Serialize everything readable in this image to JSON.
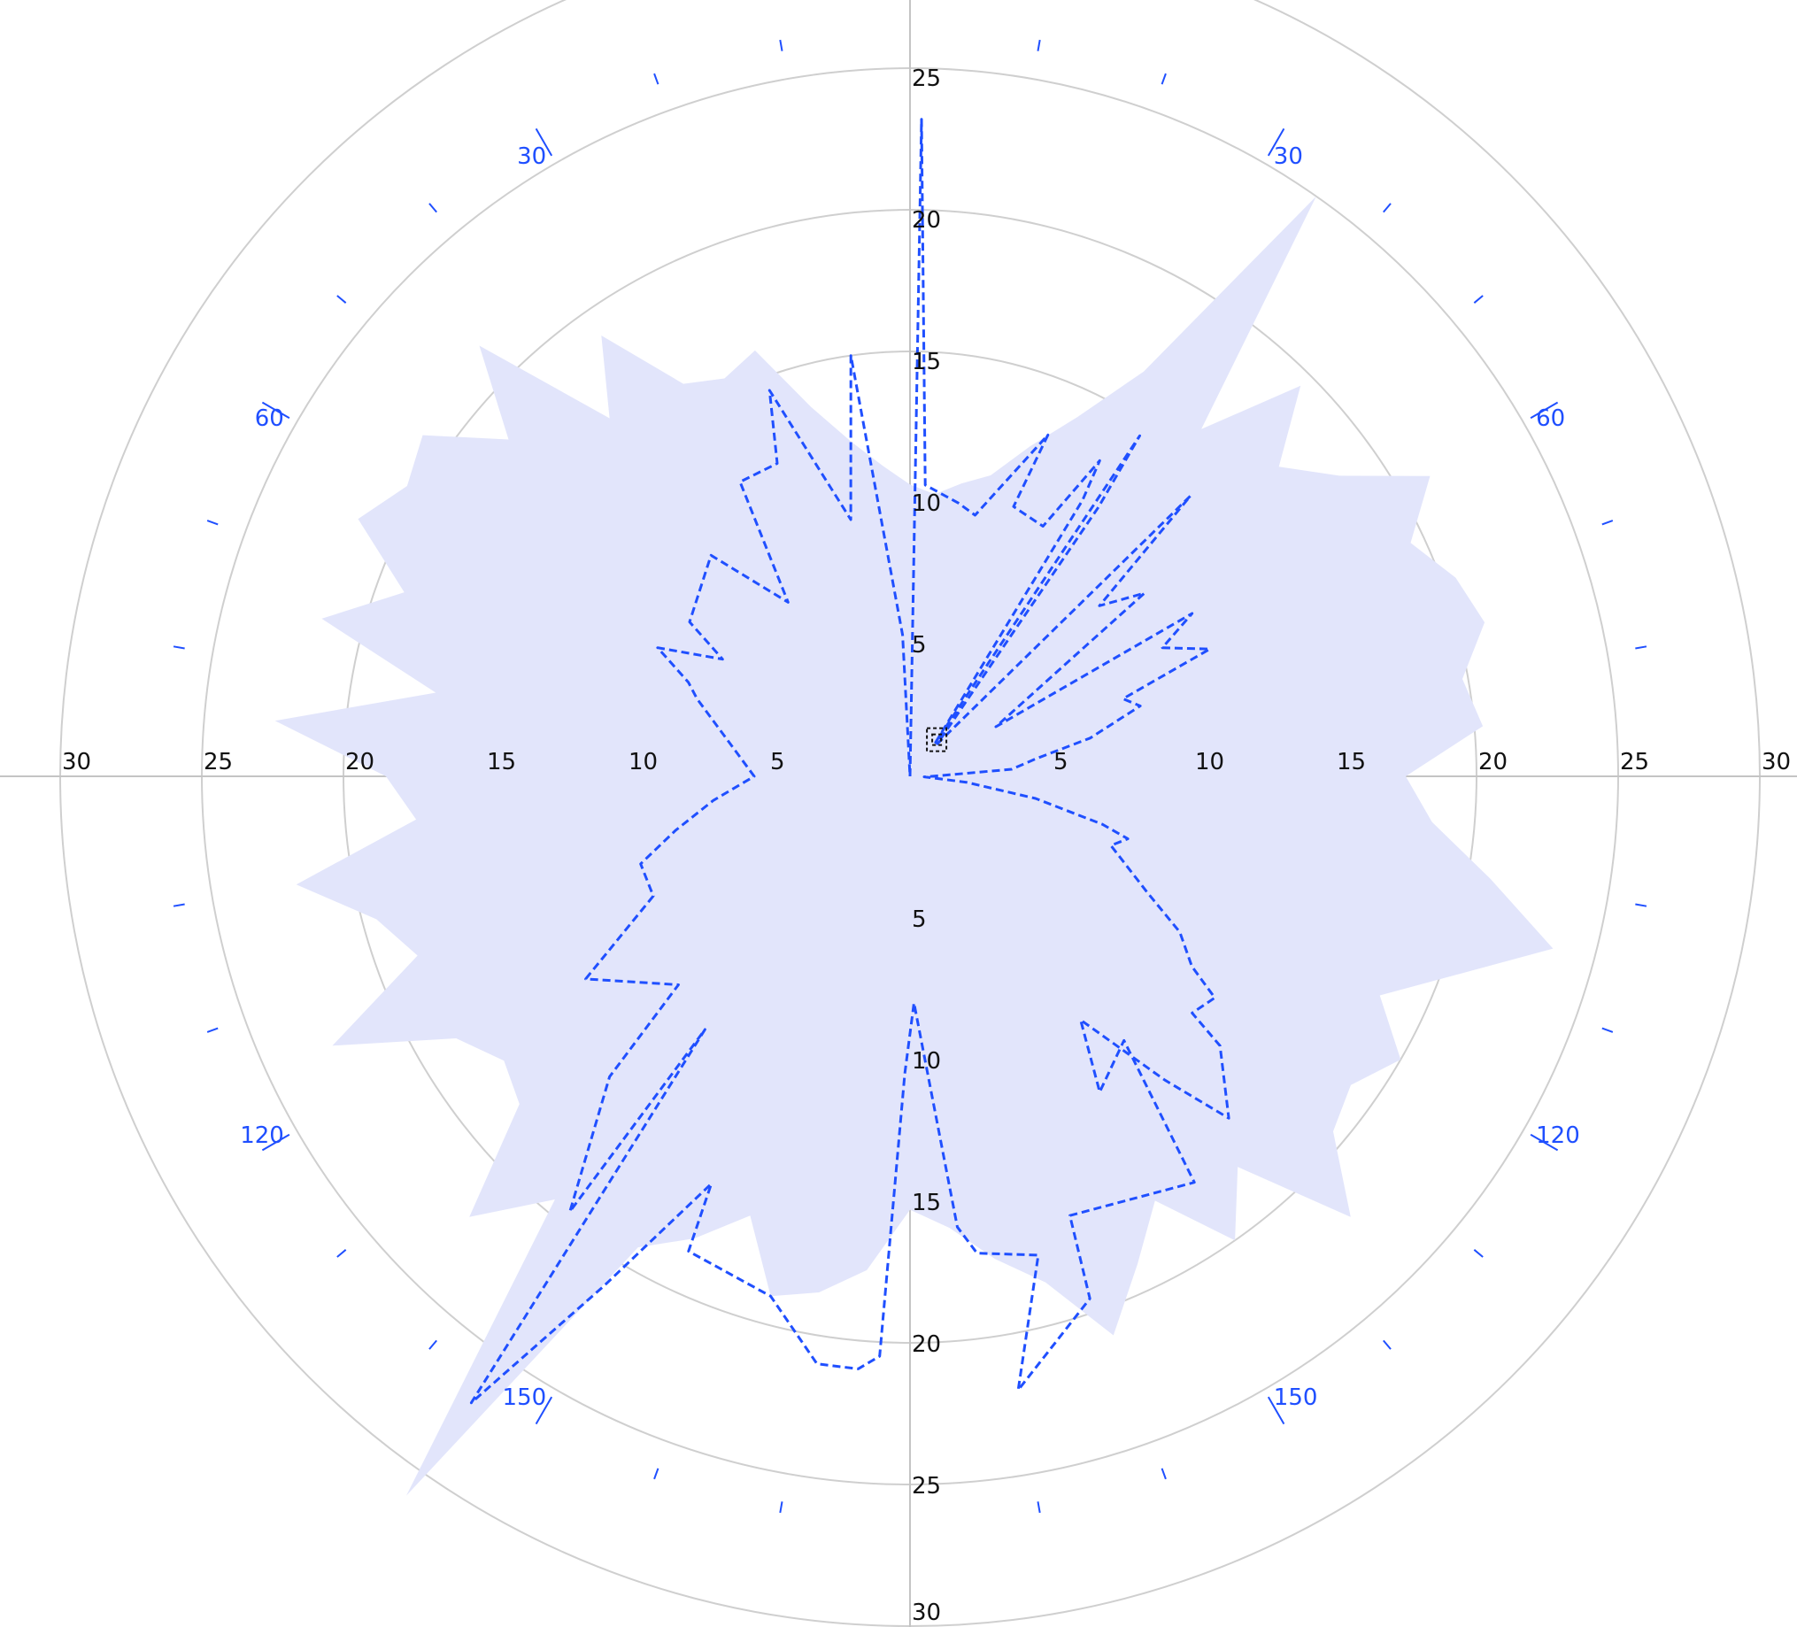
{
  "chart_data": {
    "type": "polar",
    "angle_unit": "degrees",
    "angle_zero": "top",
    "angle_direction": "clockwise",
    "radial_range": [
      0,
      30
    ],
    "radial_ticks": [
      5,
      10,
      15,
      20,
      25,
      30
    ],
    "radial_tick_labels": [
      "5",
      "10",
      "15",
      "20",
      "25",
      "30"
    ],
    "angle_labels": [
      "30",
      "60",
      "120",
      "150"
    ],
    "grid": true,
    "colors": {
      "line": "#1f4fff",
      "area": "#e2e5fb",
      "grid": "#cfcfcf"
    },
    "series": [
      {
        "kind": "area",
        "points": [
          [
            0,
            10.3
          ],
          [
            5,
            10.0
          ],
          [
            10,
            10.5
          ],
          [
            15,
            11.0
          ],
          [
            20,
            12.4
          ],
          [
            25,
            14.0
          ],
          [
            30,
            16.5
          ],
          [
            35,
            25.0
          ],
          [
            40,
            16.0
          ],
          [
            45,
            19.5
          ],
          [
            50,
            17.0
          ],
          [
            55,
            18.5
          ],
          [
            60,
            21.2
          ],
          [
            65,
            19.5
          ],
          [
            70,
            20.5
          ],
          [
            75,
            21.0
          ],
          [
            80,
            19.8
          ],
          [
            85,
            20.3
          ],
          [
            90,
            17.5
          ],
          [
            95,
            18.5
          ],
          [
            100,
            20.8
          ],
          [
            105,
            23.5
          ],
          [
            110,
            20.5
          ],
          [
            115,
            18.3
          ],
          [
            120,
            20.0
          ],
          [
            125,
            19.0
          ],
          [
            130,
            19.5
          ],
          [
            135,
            22.0
          ],
          [
            140,
            18.0
          ],
          [
            145,
            20.0
          ],
          [
            150,
            17.3
          ],
          [
            155,
            19.0
          ],
          [
            160,
            21.0
          ],
          [
            165,
            18.5
          ],
          [
            170,
            17.3
          ],
          [
            175,
            16.0
          ],
          [
            180,
            15.3
          ],
          [
            185,
            17.5
          ],
          [
            190,
            18.5
          ],
          [
            195,
            19.0
          ],
          [
            200,
            16.5
          ],
          [
            205,
            18.0
          ],
          [
            210,
            19.2
          ],
          [
            215,
            31.0
          ],
          [
            220,
            19.5
          ],
          [
            225,
            22.0
          ],
          [
            230,
            18.0
          ],
          [
            235,
            17.5
          ],
          [
            240,
            18.5
          ],
          [
            245,
            22.5
          ],
          [
            250,
            18.5
          ],
          [
            255,
            19.5
          ],
          [
            260,
            22.0
          ],
          [
            265,
            17.5
          ],
          [
            270,
            18.5
          ],
          [
            275,
            22.5
          ],
          [
            280,
            17.0
          ],
          [
            285,
            21.5
          ],
          [
            290,
            19.0
          ],
          [
            295,
            21.5
          ],
          [
            300,
            20.5
          ],
          [
            305,
            21.0
          ],
          [
            310,
            18.5
          ],
          [
            315,
            21.5
          ],
          [
            320,
            16.5
          ],
          [
            325,
            19.0
          ],
          [
            330,
            16.0
          ],
          [
            335,
            15.5
          ],
          [
            340,
            16.0
          ],
          [
            345,
            13.5
          ],
          [
            350,
            12.0
          ],
          [
            355,
            11.0
          ]
        ]
      },
      {
        "kind": "line",
        "style": "dashed",
        "points": [
          [
            0,
            0
          ],
          [
            1,
            23.2
          ],
          [
            3,
            10.3
          ],
          [
            10,
            9.8
          ],
          [
            14,
            9.5
          ],
          [
            22,
            13.0
          ],
          [
            21,
            10.2
          ],
          [
            28,
            10.0
          ],
          [
            31,
            13.0
          ],
          [
            32,
            11.5
          ],
          [
            37,
            1.5
          ],
          [
            34,
            14.5
          ],
          [
            35,
            11.6
          ],
          [
            40,
            1.5
          ],
          [
            45,
            14.0
          ],
          [
            48,
            9.0
          ],
          [
            52,
            10.5
          ],
          [
            60,
            3.5
          ],
          [
            60,
            11.5
          ],
          [
            63,
            10.0
          ],
          [
            67,
            11.5
          ],
          [
            70,
            8.0
          ],
          [
            73,
            8.5
          ],
          [
            78,
            6.5
          ],
          [
            82,
            4.5
          ],
          [
            86,
            3.6
          ],
          [
            89,
            1.0
          ],
          [
            92,
            0.5
          ],
          [
            96,
            2.0
          ],
          [
            100,
            4.5
          ],
          [
            104,
            7.0
          ],
          [
            106,
            8.0
          ],
          [
            109,
            7.5
          ],
          [
            116,
            9.3
          ],
          [
            120,
            11.0
          ],
          [
            124,
            12.0
          ],
          [
            126,
            13.3
          ],
          [
            130,
            13.0
          ],
          [
            131,
            14.5
          ],
          [
            137,
            16.5
          ],
          [
            140,
            14.0
          ],
          [
            145,
            10.5
          ],
          [
            149,
            13.0
          ],
          [
            141,
            12.0
          ],
          [
            145,
            17.5
          ],
          [
            160,
            16.5
          ],
          [
            161,
            19.5
          ],
          [
            170,
            22.0
          ],
          [
            165,
            17.5
          ],
          [
            172,
            17.0
          ],
          [
            174,
            16.0
          ],
          [
            179,
            8.0
          ],
          [
            181,
            10.5
          ],
          [
            183,
            20.5
          ],
          [
            185,
            21.0
          ],
          [
            189,
            21.0
          ],
          [
            195,
            19.0
          ],
          [
            205,
            18.5
          ],
          [
            206,
            16.0
          ],
          [
            211,
            21.0
          ],
          [
            215,
            27.0
          ],
          [
            219,
            11.5
          ],
          [
            218,
            19.5
          ],
          [
            225,
            15.0
          ],
          [
            228,
            11.0
          ],
          [
            238,
            13.5
          ],
          [
            245,
            10.0
          ],
          [
            252,
            10.0
          ],
          [
            257,
            8.5
          ],
          [
            263,
            7.0
          ],
          [
            270,
            5.5
          ],
          [
            290,
            8.0
          ],
          [
            293,
            8.5
          ],
          [
            297,
            10.0
          ],
          [
            302,
            7.8
          ],
          [
            305,
            9.5
          ],
          [
            318,
            10.5
          ],
          [
            325,
            7.5
          ],
          [
            330,
            12.0
          ],
          [
            337,
            12.0
          ],
          [
            340,
            14.5
          ],
          [
            347,
            9.3
          ],
          [
            352,
            15.0
          ],
          [
            357,
            5.0
          ],
          [
            358,
            0
          ]
        ]
      }
    ],
    "marker": {
      "angle": 36,
      "r": 1.6
    }
  }
}
